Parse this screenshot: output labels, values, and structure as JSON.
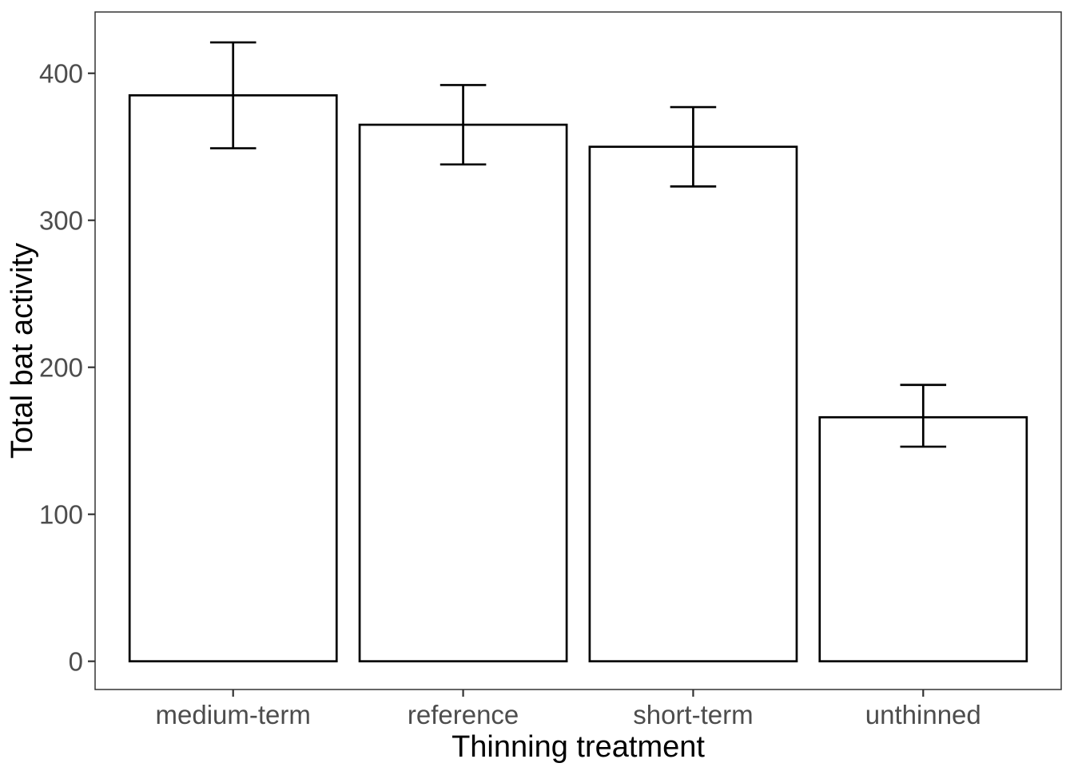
{
  "figure": {
    "background": "#ffffff"
  },
  "chart_data": {
    "type": "bar",
    "title": "",
    "xlabel": "Thinning treatment",
    "ylabel": "Total bat activity",
    "categories": [
      "medium-term",
      "reference",
      "short-term",
      "unthinned"
    ],
    "values": [
      385,
      365,
      350,
      166
    ],
    "error_low": [
      349,
      338,
      323,
      146
    ],
    "error_high": [
      421,
      392,
      377,
      188
    ],
    "yticks": [
      0,
      100,
      200,
      300,
      400
    ],
    "ylim": [
      -19.2,
      441.7
    ],
    "grid": false,
    "legend": "none",
    "bar_fill": "#ffffff",
    "bar_stroke": "#000000",
    "error_color": "#000000",
    "axis_text_color": "#4d4d4d",
    "axis_title_color": "#000000",
    "tick_mark_color": "#333333",
    "panel_border_color": "#333333"
  }
}
